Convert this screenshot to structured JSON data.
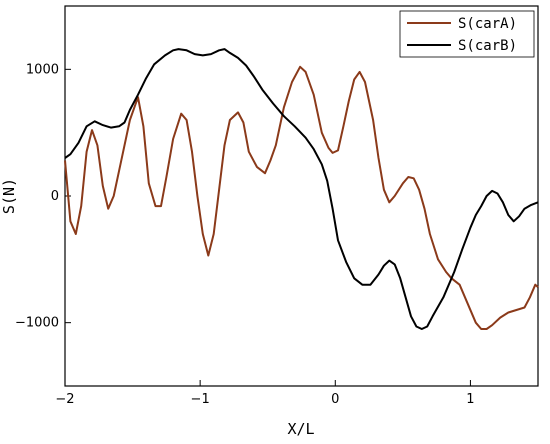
{
  "chart_data": {
    "type": "line",
    "title": "",
    "xlabel": "X/L",
    "ylabel": "S(N)",
    "xlim": [
      -2,
      1.5
    ],
    "ylim": [
      -1500,
      1500
    ],
    "x_ticks": [
      -2,
      -1,
      0,
      1
    ],
    "x_tick_labels": [
      "−2",
      "−1",
      "0",
      "1"
    ],
    "y_ticks": [
      -1000,
      0,
      1000
    ],
    "y_tick_labels": [
      "−1000",
      "0",
      "1000"
    ],
    "grid": false,
    "legend_position": "top-right",
    "series": [
      {
        "name": "S(carA)",
        "color": "#8B3A1A",
        "points": [
          [
            -2.0,
            280
          ],
          [
            -1.96,
            -200
          ],
          [
            -1.92,
            -300
          ],
          [
            -1.88,
            -80
          ],
          [
            -1.84,
            350
          ],
          [
            -1.8,
            520
          ],
          [
            -1.76,
            400
          ],
          [
            -1.72,
            80
          ],
          [
            -1.68,
            -100
          ],
          [
            -1.64,
            0
          ],
          [
            -1.6,
            200
          ],
          [
            -1.52,
            600
          ],
          [
            -1.46,
            780
          ],
          [
            -1.42,
            550
          ],
          [
            -1.38,
            100
          ],
          [
            -1.33,
            -80
          ],
          [
            -1.29,
            -80
          ],
          [
            -1.25,
            150
          ],
          [
            -1.2,
            450
          ],
          [
            -1.14,
            650
          ],
          [
            -1.1,
            600
          ],
          [
            -1.06,
            350
          ],
          [
            -1.02,
            0
          ],
          [
            -0.98,
            -300
          ],
          [
            -0.94,
            -470
          ],
          [
            -0.9,
            -300
          ],
          [
            -0.86,
            50
          ],
          [
            -0.82,
            400
          ],
          [
            -0.78,
            600
          ],
          [
            -0.72,
            660
          ],
          [
            -0.68,
            580
          ],
          [
            -0.64,
            350
          ],
          [
            -0.58,
            230
          ],
          [
            -0.52,
            180
          ],
          [
            -0.48,
            280
          ],
          [
            -0.44,
            400
          ],
          [
            -0.38,
            700
          ],
          [
            -0.32,
            900
          ],
          [
            -0.26,
            1020
          ],
          [
            -0.22,
            980
          ],
          [
            -0.16,
            800
          ],
          [
            -0.1,
            500
          ],
          [
            -0.05,
            380
          ],
          [
            -0.02,
            340
          ],
          [
            0.02,
            360
          ],
          [
            0.06,
            550
          ],
          [
            0.1,
            750
          ],
          [
            0.14,
            920
          ],
          [
            0.18,
            980
          ],
          [
            0.22,
            900
          ],
          [
            0.28,
            600
          ],
          [
            0.32,
            300
          ],
          [
            0.36,
            50
          ],
          [
            0.4,
            -50
          ],
          [
            0.44,
            0
          ],
          [
            0.5,
            100
          ],
          [
            0.54,
            150
          ],
          [
            0.58,
            140
          ],
          [
            0.62,
            50
          ],
          [
            0.66,
            -100
          ],
          [
            0.7,
            -300
          ],
          [
            0.76,
            -500
          ],
          [
            0.82,
            -600
          ],
          [
            0.86,
            -650
          ],
          [
            0.92,
            -700
          ],
          [
            0.98,
            -850
          ],
          [
            1.04,
            -1000
          ],
          [
            1.08,
            -1050
          ],
          [
            1.12,
            -1050
          ],
          [
            1.16,
            -1020
          ],
          [
            1.22,
            -960
          ],
          [
            1.28,
            -920
          ],
          [
            1.34,
            -900
          ],
          [
            1.4,
            -880
          ],
          [
            1.44,
            -800
          ],
          [
            1.48,
            -700
          ],
          [
            1.5,
            -720
          ]
        ]
      },
      {
        "name": "S(carB)",
        "color": "#000000",
        "points": [
          [
            -2.0,
            300
          ],
          [
            -1.96,
            330
          ],
          [
            -1.9,
            420
          ],
          [
            -1.84,
            550
          ],
          [
            -1.78,
            590
          ],
          [
            -1.72,
            560
          ],
          [
            -1.66,
            540
          ],
          [
            -1.6,
            550
          ],
          [
            -1.56,
            580
          ],
          [
            -1.52,
            680
          ],
          [
            -1.46,
            800
          ],
          [
            -1.4,
            930
          ],
          [
            -1.34,
            1040
          ],
          [
            -1.26,
            1110
          ],
          [
            -1.2,
            1150
          ],
          [
            -1.16,
            1160
          ],
          [
            -1.1,
            1150
          ],
          [
            -1.04,
            1120
          ],
          [
            -0.98,
            1110
          ],
          [
            -0.92,
            1120
          ],
          [
            -0.86,
            1150
          ],
          [
            -0.82,
            1160
          ],
          [
            -0.78,
            1130
          ],
          [
            -0.72,
            1090
          ],
          [
            -0.66,
            1030
          ],
          [
            -0.6,
            940
          ],
          [
            -0.54,
            840
          ],
          [
            -0.46,
            730
          ],
          [
            -0.38,
            630
          ],
          [
            -0.3,
            550
          ],
          [
            -0.22,
            460
          ],
          [
            -0.16,
            370
          ],
          [
            -0.1,
            250
          ],
          [
            -0.06,
            120
          ],
          [
            -0.02,
            -100
          ],
          [
            0.02,
            -350
          ],
          [
            0.08,
            -520
          ],
          [
            0.14,
            -650
          ],
          [
            0.2,
            -700
          ],
          [
            0.26,
            -700
          ],
          [
            0.32,
            -620
          ],
          [
            0.36,
            -550
          ],
          [
            0.4,
            -510
          ],
          [
            0.44,
            -540
          ],
          [
            0.48,
            -650
          ],
          [
            0.52,
            -800
          ],
          [
            0.56,
            -950
          ],
          [
            0.6,
            -1030
          ],
          [
            0.64,
            -1050
          ],
          [
            0.68,
            -1030
          ],
          [
            0.72,
            -950
          ],
          [
            0.8,
            -800
          ],
          [
            0.88,
            -600
          ],
          [
            0.94,
            -420
          ],
          [
            1.0,
            -250
          ],
          [
            1.04,
            -150
          ],
          [
            1.08,
            -80
          ],
          [
            1.12,
            0
          ],
          [
            1.16,
            40
          ],
          [
            1.2,
            20
          ],
          [
            1.24,
            -50
          ],
          [
            1.28,
            -150
          ],
          [
            1.32,
            -200
          ],
          [
            1.36,
            -160
          ],
          [
            1.4,
            -100
          ],
          [
            1.45,
            -70
          ],
          [
            1.5,
            -50
          ]
        ]
      }
    ]
  }
}
